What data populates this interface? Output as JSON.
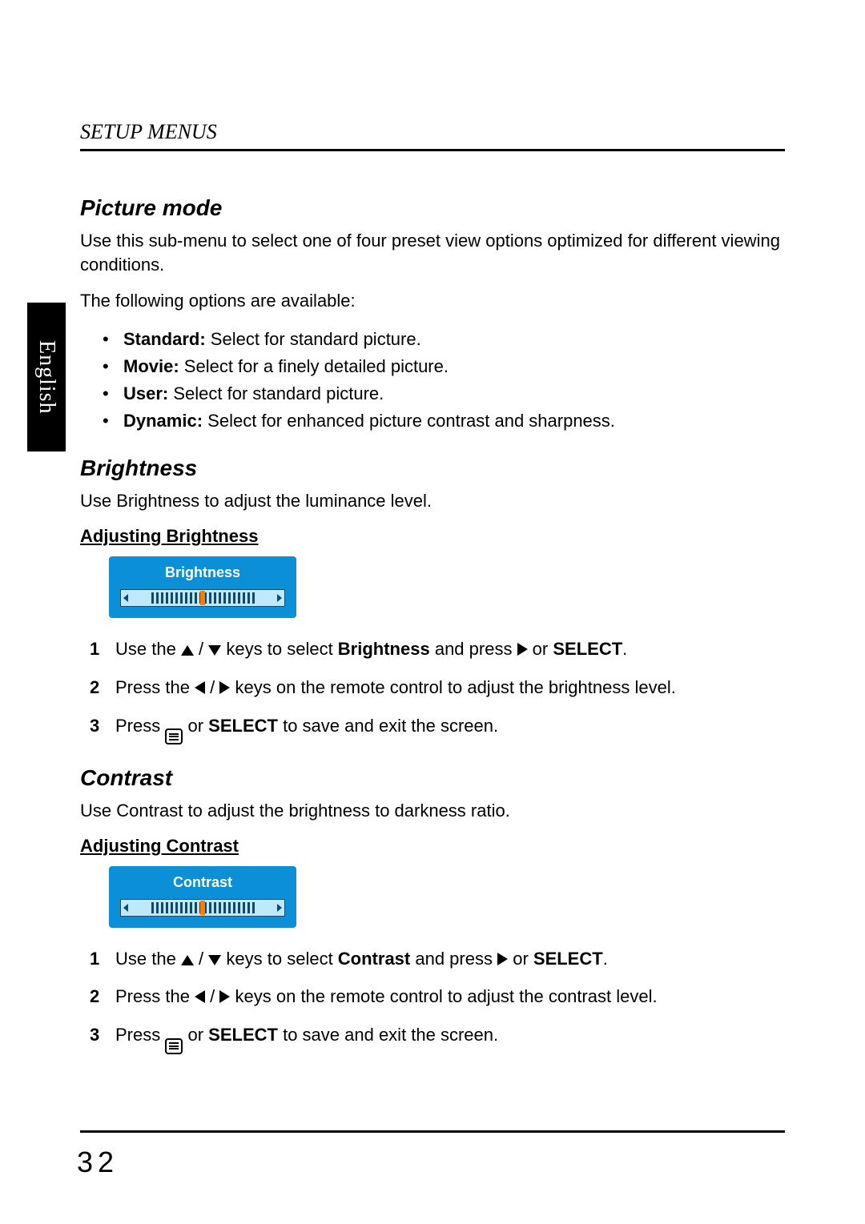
{
  "side_tab": "English",
  "header": "SETUP MENUS",
  "page_number": "32",
  "picture_mode": {
    "heading": "Picture mode",
    "intro": "Use this sub-menu to select one of four preset view options optimized for different viewing conditions.",
    "available_label": "The following options are available:",
    "options": [
      {
        "name": "Standard:",
        "desc": " Select for standard picture."
      },
      {
        "name": "Movie:",
        "desc": " Select for a finely detailed picture."
      },
      {
        "name": "User:",
        "desc": " Select for standard picture."
      },
      {
        "name": "Dynamic:",
        "desc": " Select for enhanced picture contrast and sharpness."
      }
    ]
  },
  "brightness": {
    "heading": "Brightness",
    "intro": "Use Brightness to adjust the luminance level.",
    "sub": "Adjusting Brightness",
    "osd_title": "Brightness",
    "osd": {
      "bg": "#0b8fd6",
      "track": "#bfe8fb",
      "tick": "#0b4a73",
      "thumb": "#ff7a00",
      "tick_count": 22
    },
    "steps": [
      {
        "n": "1",
        "pre": "Use the ",
        "mid": " keys to select ",
        "target": "Brightness",
        "post": " and press ",
        "tail1": " or ",
        "tail2": "SELECT",
        "tail3": "."
      },
      {
        "n": "2",
        "pre": "Press the ",
        "mid": " keys on the remote control to adjust the brightness level."
      },
      {
        "n": "3",
        "pre": "Press ",
        "mid": " or ",
        "tail2": "SELECT",
        "post": " to save and exit the screen."
      }
    ]
  },
  "contrast": {
    "heading": "Contrast",
    "intro": "Use Contrast to adjust the brightness to darkness ratio.",
    "sub": "Adjusting Contrast",
    "osd_title": "Contrast",
    "osd": {
      "bg": "#0b8fd6",
      "track": "#bfe8fb",
      "tick": "#0b4a73",
      "thumb": "#ff7a00",
      "tick_count": 22
    },
    "steps": [
      {
        "n": "1",
        "pre": "Use the ",
        "mid": " keys to select ",
        "target": "Contrast",
        "post": " and press ",
        "tail1": " or ",
        "tail2": "SELECT",
        "tail3": "."
      },
      {
        "n": "2",
        "pre": "Press the ",
        "mid": " keys on the remote control to adjust the contrast level."
      },
      {
        "n": "3",
        "pre": "Press ",
        "mid": " or ",
        "tail2": "SELECT",
        "post": " to save and exit the screen."
      }
    ]
  }
}
